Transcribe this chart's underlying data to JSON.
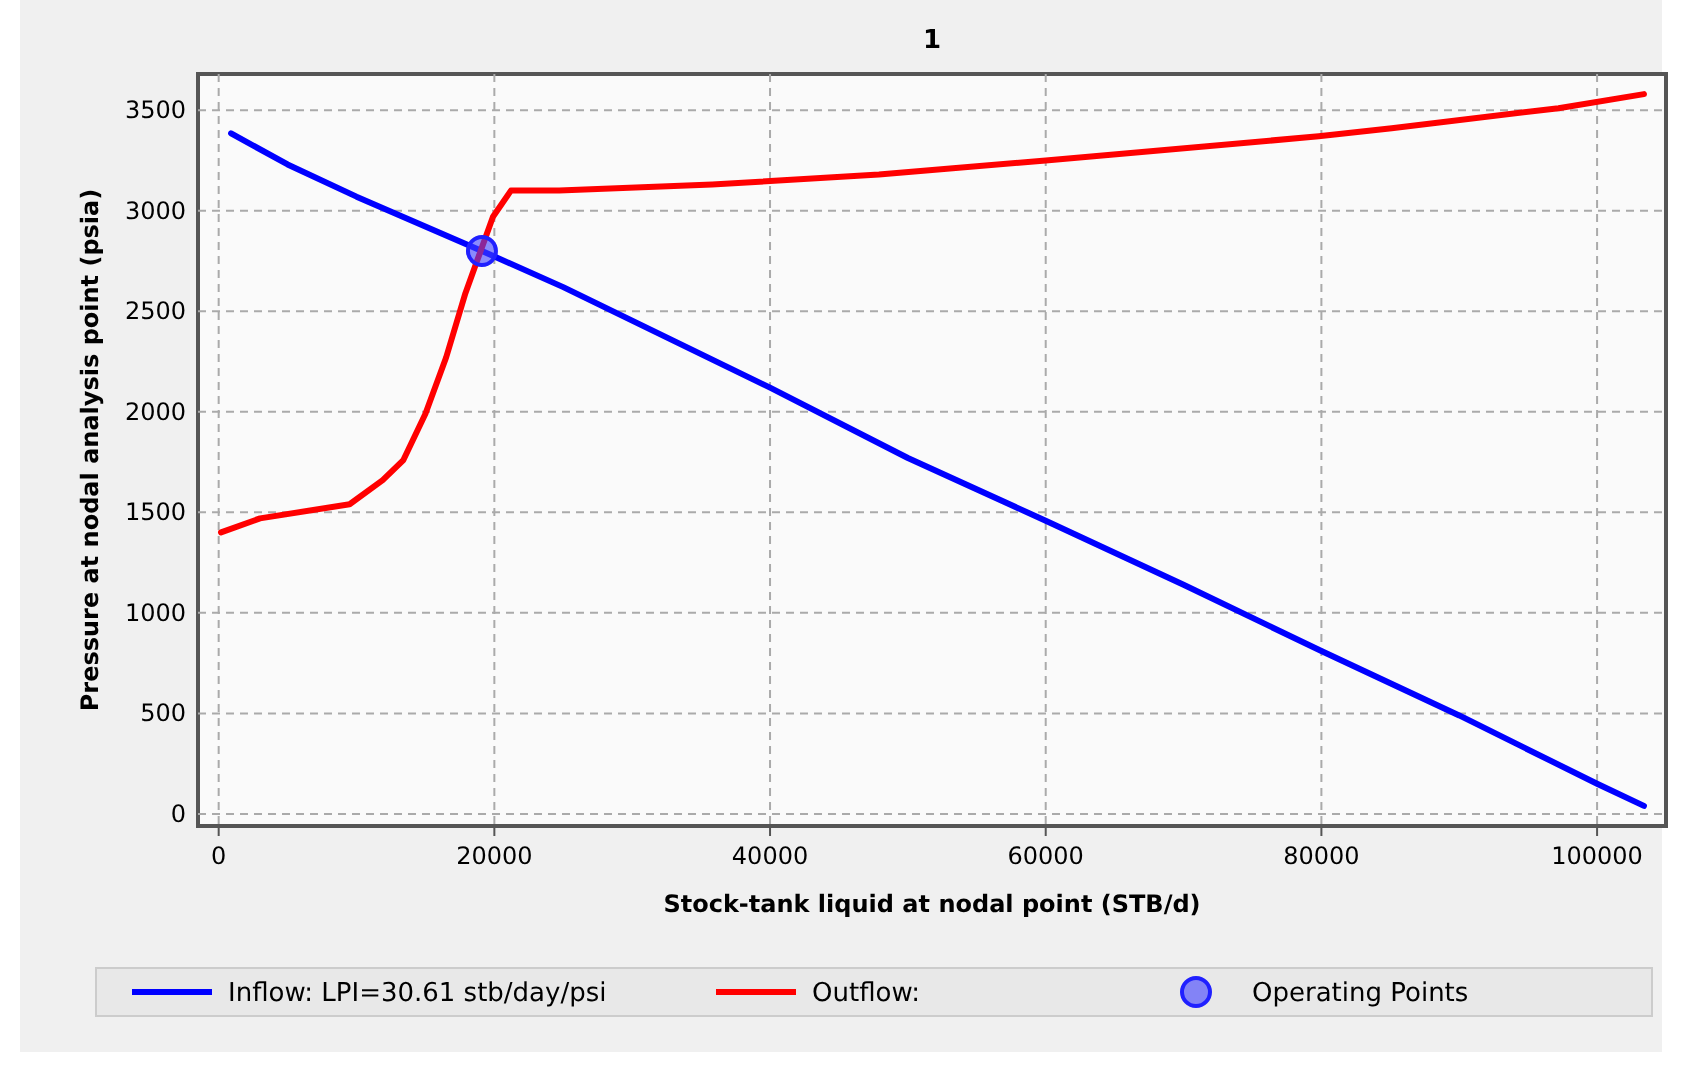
{
  "chart_data": {
    "type": "line",
    "title": "1",
    "xlabel": "Stock-tank liquid at nodal point (STB/d)",
    "ylabel": "Pressure at nodal analysis point (psia)",
    "xlim": [
      -1500,
      105000
    ],
    "ylim": [
      -60,
      3680
    ],
    "xticks": [
      0,
      20000,
      40000,
      60000,
      80000,
      100000
    ],
    "yticks": [
      0,
      500,
      1000,
      1500,
      2000,
      2500,
      3000,
      3500
    ],
    "grid": true,
    "legend": "bottom",
    "marker": "none",
    "line_style": "solid",
    "series": [
      {
        "name": "Inflow: LPI=30.61 stb/day/psi",
        "color": "#0000ff",
        "x": [
          900,
          5000,
          10000,
          19100,
          25000,
          40000,
          50000,
          60000,
          70000,
          80000,
          90000,
          100000,
          103400
        ],
        "values": [
          3385,
          3230,
          3070,
          2800,
          2620,
          2120,
          1770,
          1458,
          1140,
          810,
          490,
          150,
          40
        ]
      },
      {
        "name": "Outflow:",
        "color": "#ff0000",
        "x": [
          170,
          3000,
          9500,
          11900,
          13400,
          15000,
          16500,
          17900,
          19900,
          21200,
          24700,
          35800,
          47900,
          60000,
          79800,
          85100,
          97200,
          103400
        ],
        "values": [
          1400,
          1470,
          1540,
          1660,
          1760,
          1990,
          2270,
          2590,
          2970,
          3100,
          3100,
          3130,
          3180,
          3250,
          3370,
          3410,
          3510,
          3580
        ]
      },
      {
        "name": "Operating Points",
        "type": "scatter",
        "marker": "circle",
        "color": "#3f3fff",
        "x": [
          19100
        ],
        "values": [
          2800
        ]
      }
    ]
  }
}
